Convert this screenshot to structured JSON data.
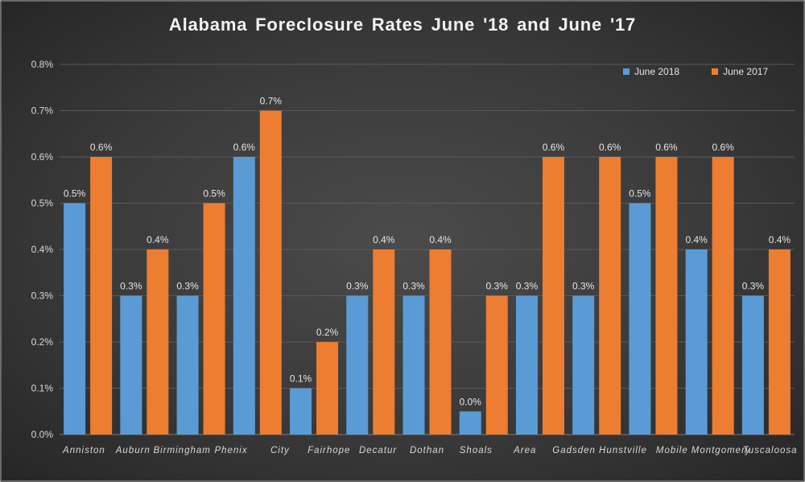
{
  "chart_data": {
    "type": "bar",
    "title": "Alabama Foreclosure Rates June '18 and June '17",
    "xlabel": "",
    "ylabel": "",
    "ylim": [
      0,
      0.8
    ],
    "yticks": [
      "0.0%",
      "0.1%",
      "0.2%",
      "0.3%",
      "0.4%",
      "0.5%",
      "0.6%",
      "0.7%",
      "0.8%"
    ],
    "grid": true,
    "legend_position": "top-right",
    "categories": [
      "Anniston",
      "Auburn",
      "Birmingham",
      "Phenix City",
      "Fairhope",
      "Decatur",
      "Dothan",
      "Shoals Area",
      "Gadsden",
      "Hunstville",
      "Mobile",
      "Montgomery",
      "Tuscaloosa"
    ],
    "series": [
      {
        "name": "June 2018",
        "color": "#5b9bd5",
        "values": [
          0.5,
          0.3,
          0.3,
          0.6,
          0.1,
          0.3,
          0.3,
          0.05,
          0.3,
          0.3,
          0.5,
          0.4,
          0.3
        ],
        "labels": [
          "0.5%",
          "0.3%",
          "0.3%",
          "0.6%",
          "0.1%",
          "0.3%",
          "0.3%",
          "0.0%",
          "0.3%",
          "0.3%",
          "0.5%",
          "0.4%",
          "0.3%"
        ]
      },
      {
        "name": "June 2017",
        "color": "#ed7d31",
        "values": [
          0.6,
          0.4,
          0.5,
          0.7,
          0.2,
          0.4,
          0.4,
          0.3,
          0.6,
          0.6,
          0.6,
          0.6,
          0.4
        ],
        "labels": [
          "0.6%",
          "0.4%",
          "0.5%",
          "0.7%",
          "0.2%",
          "0.4%",
          "0.4%",
          "0.3%",
          "0.6%",
          "0.6%",
          "0.6%",
          "0.6%",
          "0.4%"
        ]
      }
    ],
    "x_tick_labels": [
      "Anniston",
      "Auburn",
      "Birmingham",
      "Phenix",
      "City",
      "Fairhope",
      "Decatur",
      "Dothan",
      "Shoals",
      "Area",
      "Gadsden",
      "Hunstville",
      "Mobile",
      "Montgomery",
      "Tuscaloosa"
    ]
  }
}
